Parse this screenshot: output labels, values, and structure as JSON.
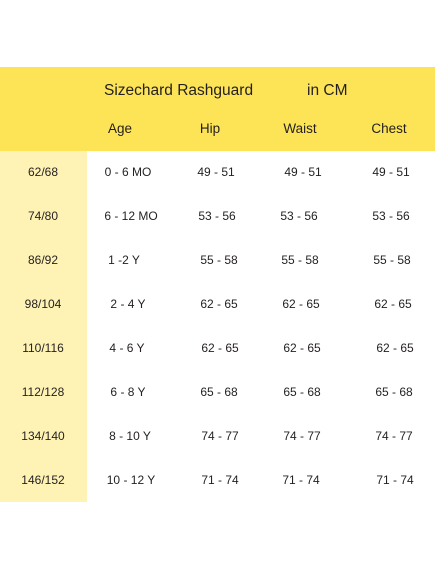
{
  "header": {
    "title": "Sizechard Rashguard",
    "unit": "in CM"
  },
  "columns": [
    "Age",
    "Hip",
    "Waist",
    "Chest"
  ],
  "rows": [
    {
      "size": "62/68",
      "age": "0 - 6 MO",
      "hip": "49 - 51",
      "waist": "49 - 51",
      "chest": "49 - 51"
    },
    {
      "size": "74/80",
      "age": "6 - 12 MO",
      "hip": "53 - 56",
      "waist": "53 - 56",
      "chest": "53 - 56"
    },
    {
      "size": "86/92",
      "age": "1 -2  Y",
      "hip": "55 - 58",
      "waist": "55 - 58",
      "chest": "55 - 58"
    },
    {
      "size": "98/104",
      "age": "2 - 4  Y",
      "hip": "62 - 65",
      "waist": "62 - 65",
      "chest": "62 - 65"
    },
    {
      "size": "110/116",
      "age": "4 - 6  Y",
      "hip": "62 - 65",
      "waist": "62 - 65",
      "chest": "62 - 65"
    },
    {
      "size": "112/128",
      "age": "6 - 8  Y",
      "hip": "65 - 68",
      "waist": "65 - 68",
      "chest": "65 - 68"
    },
    {
      "size": "134/140",
      "age": "8 - 10  Y",
      "hip": "74 - 77",
      "waist": "74 - 77",
      "chest": "74 - 77"
    },
    {
      "size": "146/152",
      "age": "10 - 12  Y",
      "hip": "71 - 74",
      "waist": "71 - 74",
      "chest": "71 - 74"
    }
  ],
  "colors": {
    "header_band": "#fde457",
    "size_band": "#fef3b5",
    "text": "#231f20"
  }
}
